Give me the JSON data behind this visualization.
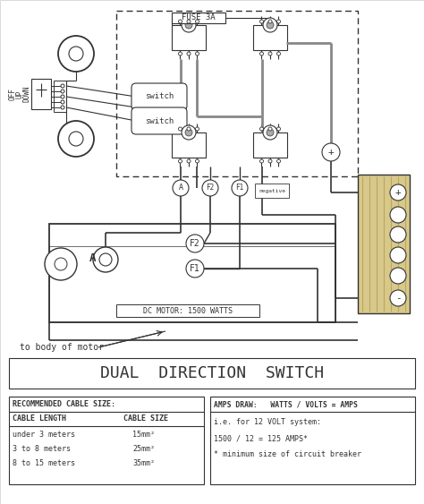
{
  "bg_color": "#ffffff",
  "line_color": "#333333",
  "title": "DUAL  DIRECTION  SWITCH",
  "fuse_label": "FUSE 3A",
  "motor_label": "DC MOTOR: 1500 WATTS",
  "body_label": "to body of motor",
  "switch_label": "switch",
  "table1_title": "RECOMMENDED CABLE SIZE:",
  "table1_col1": "CABLE LENGTH",
  "table1_col2": "CABLE SIZE",
  "table1_rows": [
    [
      "under 3 meters",
      "15mm²"
    ],
    [
      "3 to 8 meters",
      "25mm²"
    ],
    [
      "8 to 15 meters",
      "35mm²"
    ]
  ],
  "table2_title": "AMPS DRAW:   WATTS / VOLTS = AMPS",
  "table2_lines": [
    "i.e. for 12 VOLT system:",
    "1500 / 12 = 125 AMPS*",
    "* minimum size of circuit breaker"
  ]
}
